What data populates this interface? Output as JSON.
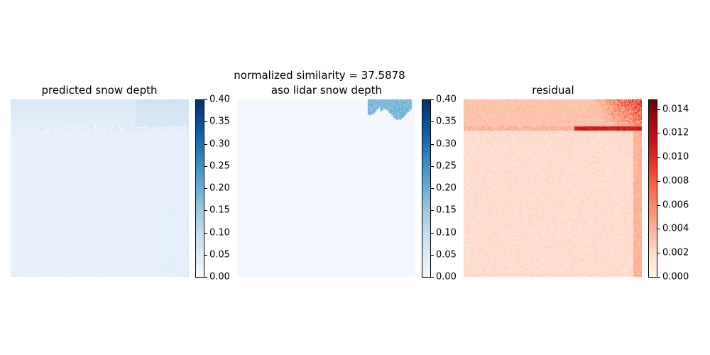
{
  "chart_data": [
    {
      "type": "heatmap",
      "title": "predicted snow depth",
      "colormap": "Blues",
      "colorbar": {
        "min": 0.0,
        "max": 0.4,
        "ticks": [
          "0.00",
          "0.05",
          "0.10",
          "0.15",
          "0.20",
          "0.25",
          "0.30",
          "0.35",
          "0.40"
        ]
      },
      "grid": false,
      "features": {
        "background": 0.03,
        "top_band_value": 0.05,
        "top_band_rows": [
          0,
          0.16
        ],
        "top_right_value": 0.07,
        "right_edge_value": 0.05
      }
    },
    {
      "type": "heatmap",
      "suptitle": "normalized similarity = 37.5878",
      "title": "aso lidar snow depth",
      "colormap": "Blues",
      "colorbar": {
        "min": 0.0,
        "max": 0.4,
        "ticks": [
          "0.00",
          "0.05",
          "0.10",
          "0.15",
          "0.20",
          "0.25",
          "0.30",
          "0.35",
          "0.40"
        ]
      },
      "grid": false,
      "features": {
        "background": 0.01,
        "patch_value": 0.18,
        "patch_cols": [
          0.73,
          1.0
        ],
        "patch_rows": [
          0,
          0.08
        ]
      }
    },
    {
      "type": "heatmap",
      "title": "residual",
      "colormap": "Reds",
      "colorbar": {
        "min": 0.0,
        "max": 0.0148,
        "ticks": [
          "0.000",
          "0.002",
          "0.004",
          "0.006",
          "0.008",
          "0.010",
          "0.012",
          "0.014"
        ]
      },
      "grid": false,
      "features": {
        "background": 0.0012,
        "band_row": 0.16,
        "band_value": 0.004,
        "hotspot_value": 0.013,
        "hotspot_cols": [
          0.62,
          1.0
        ],
        "hotspot_rows": [
          0,
          0.16
        ]
      }
    }
  ]
}
